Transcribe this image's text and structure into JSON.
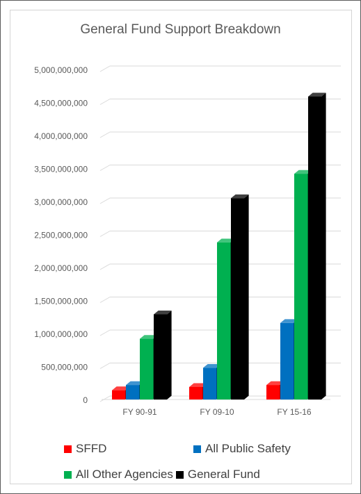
{
  "chart_data": {
    "type": "bar",
    "title": "General Fund Support Breakdown",
    "categories": [
      "FY 90-91",
      "FY 09-10",
      "FY 15-16"
    ],
    "series": [
      {
        "name": "SFFD",
        "color": "#ff0000",
        "values": [
          140000000,
          190000000,
          220000000
        ]
      },
      {
        "name": "All Public Safety",
        "color": "#0070c0",
        "values": [
          220000000,
          480000000,
          1160000000
        ]
      },
      {
        "name": "All Other Agencies",
        "color": "#00b050",
        "values": [
          920000000,
          2380000000,
          3420000000
        ]
      },
      {
        "name": "General Fund",
        "color": "#000000",
        "values": [
          1290000000,
          3050000000,
          4590000000
        ]
      }
    ],
    "y_ticks": [
      "0",
      "500,000,000",
      "1,000,000,000",
      "1,500,000,000",
      "2,000,000,000",
      "2,500,000,000",
      "3,000,000,000",
      "3,500,000,000",
      "4,000,000,000",
      "4,500,000,000",
      "5,000,000,000"
    ],
    "ylim": [
      0,
      5000000000
    ],
    "grid": true,
    "legend_position": "bottom",
    "style": "3d-clustered-column"
  }
}
